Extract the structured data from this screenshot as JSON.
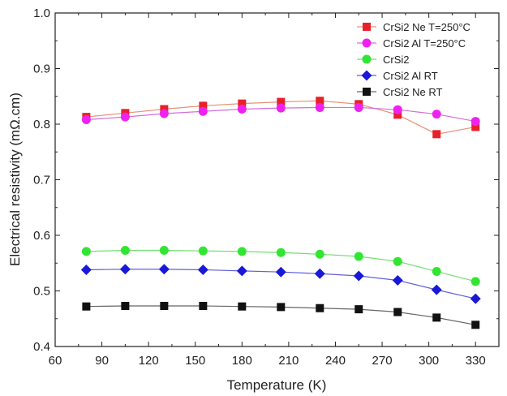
{
  "chart_data": {
    "type": "line",
    "title": "",
    "xlabel": "Temperature (K)",
    "ylabel": "Electrical resistivity (mΩ.cm)",
    "xlim": [
      60,
      345
    ],
    "ylim": [
      0.4,
      1.0
    ],
    "xticks": [
      60,
      90,
      120,
      150,
      180,
      210,
      240,
      270,
      300,
      330
    ],
    "yticks": [
      0.4,
      0.5,
      0.6,
      0.7,
      0.8,
      0.9,
      1.0
    ],
    "xtick_labels": [
      "60",
      "90",
      "120",
      "150",
      "180",
      "210",
      "240",
      "270",
      "300",
      "330"
    ],
    "ytick_labels": [
      "0.4",
      "0.5",
      "0.6",
      "0.7",
      "0.8",
      "0.9",
      "1.0"
    ],
    "grid": false,
    "legend_position": "top-right",
    "x": [
      80,
      105,
      130,
      155,
      180,
      205,
      230,
      255,
      280,
      305,
      330
    ],
    "series": [
      {
        "name": "CrSi2 Ne T=250°C",
        "marker": "square",
        "color": "#e8202a",
        "line_color": "#e8907a",
        "values": [
          0.813,
          0.82,
          0.827,
          0.833,
          0.837,
          0.84,
          0.842,
          0.836,
          0.817,
          0.782,
          0.795
        ]
      },
      {
        "name": "CrSi2 Al T=250°C",
        "marker": "circle",
        "color": "#ee22ee",
        "line_color": "#d070d8",
        "values": [
          0.808,
          0.813,
          0.819,
          0.823,
          0.827,
          0.829,
          0.83,
          0.83,
          0.826,
          0.818,
          0.805
        ]
      },
      {
        "name": "CrSi2",
        "marker": "circle",
        "color": "#33e533",
        "line_color": "#70e070",
        "values": [
          0.571,
          0.573,
          0.573,
          0.572,
          0.571,
          0.569,
          0.566,
          0.562,
          0.553,
          0.535,
          0.517
        ]
      },
      {
        "name": "CrSi2 Al RT",
        "marker": "diamond",
        "color": "#1a18d8",
        "line_color": "#6060d8",
        "values": [
          0.538,
          0.539,
          0.539,
          0.538,
          0.536,
          0.534,
          0.531,
          0.527,
          0.519,
          0.502,
          0.486
        ]
      },
      {
        "name": "CrSi2 Ne RT",
        "marker": "square",
        "color": "#111111",
        "line_color": "#666666",
        "values": [
          0.472,
          0.473,
          0.473,
          0.473,
          0.472,
          0.471,
          0.469,
          0.467,
          0.462,
          0.452,
          0.439
        ]
      }
    ]
  }
}
